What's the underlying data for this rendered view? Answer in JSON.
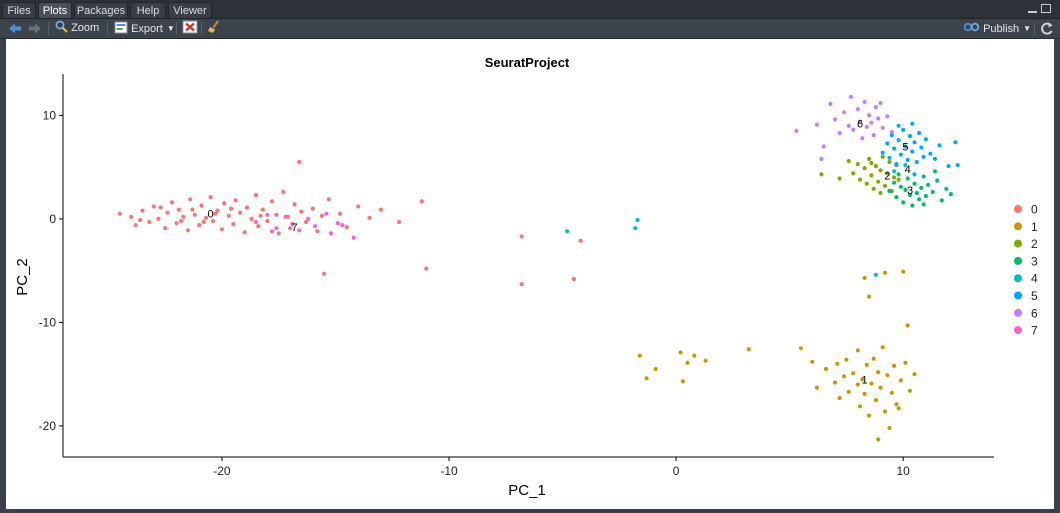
{
  "tabs": [
    {
      "label": "Files",
      "active": false
    },
    {
      "label": "Plots",
      "active": true
    },
    {
      "label": "Packages",
      "active": false
    },
    {
      "label": "Help",
      "active": false
    },
    {
      "label": "Viewer",
      "active": false
    }
  ],
  "toolbar": {
    "zoom_label": "Zoom",
    "export_label": "Export",
    "publish_label": "Publish"
  },
  "colors": {
    "0": "#F8766D",
    "1": "#CD9600",
    "2": "#7CAE00",
    "3": "#00BE67",
    "4": "#00BFC4",
    "5": "#00A9FF",
    "6": "#C77CFF",
    "7": "#FF61CC"
  },
  "chart_data": {
    "type": "scatter",
    "title": "SeuratProject",
    "xlabel": "PC_1",
    "ylabel": "PC_2",
    "xlim": [
      -27,
      14
    ],
    "ylim": [
      -23,
      14
    ],
    "x_ticks": [
      -20,
      -10,
      0,
      10
    ],
    "y_ticks": [
      -20,
      -10,
      0,
      10
    ],
    "grid": false,
    "legend_position": "right",
    "legend_entries": [
      "0",
      "1",
      "2",
      "3",
      "4",
      "5",
      "6",
      "7"
    ],
    "cluster_labels": [
      {
        "label": "0",
        "x": -20.5,
        "y": 0.5
      },
      {
        "label": "7",
        "x": -16.8,
        "y": -0.8
      },
      {
        "label": "1",
        "x": 8.3,
        "y": -15.5
      },
      {
        "label": "2",
        "x": 9.3,
        "y": 4.2
      },
      {
        "label": "3",
        "x": 10.3,
        "y": 2.8
      },
      {
        "label": "4",
        "x": 10.2,
        "y": 4.8
      },
      {
        "label": "5",
        "x": 10.1,
        "y": 7.0
      },
      {
        "label": "6",
        "x": 8.1,
        "y": 9.2
      }
    ],
    "series": [
      {
        "name": "0",
        "points": [
          [
            -24.5,
            0.5
          ],
          [
            -24.0,
            0.2
          ],
          [
            -23.8,
            -0.6
          ],
          [
            -23.5,
            0.8
          ],
          [
            -23.2,
            -0.3
          ],
          [
            -23.0,
            1.2
          ],
          [
            -22.8,
            0.0
          ],
          [
            -22.5,
            -0.9
          ],
          [
            -22.4,
            0.6
          ],
          [
            -22.2,
            1.6
          ],
          [
            -22.0,
            -0.4
          ],
          [
            -21.9,
            0.9
          ],
          [
            -21.7,
            0.2
          ],
          [
            -21.5,
            -1.1
          ],
          [
            -21.4,
            1.9
          ],
          [
            -21.2,
            0.4
          ],
          [
            -21.0,
            -0.6
          ],
          [
            -20.9,
            1.3
          ],
          [
            -20.7,
            0.1
          ],
          [
            -20.5,
            2.1
          ],
          [
            -20.4,
            -0.2
          ],
          [
            -20.2,
            0.8
          ],
          [
            -20.0,
            -1.0
          ],
          [
            -19.9,
            1.5
          ],
          [
            -19.7,
            0.3
          ],
          [
            -19.5,
            -0.5
          ],
          [
            -19.4,
            1.8
          ],
          [
            -19.2,
            0.6
          ],
          [
            -19.0,
            -1.3
          ],
          [
            -18.9,
            1.1
          ],
          [
            -18.7,
            0.0
          ],
          [
            -18.5,
            2.3
          ],
          [
            -18.4,
            -0.7
          ],
          [
            -18.2,
            0.9
          ],
          [
            -18.0,
            -0.2
          ],
          [
            -17.8,
            1.7
          ],
          [
            -17.6,
            0.4
          ],
          [
            -17.5,
            -1.4
          ],
          [
            -17.3,
            2.6
          ],
          [
            -17.1,
            0.2
          ],
          [
            -17.0,
            -0.9
          ],
          [
            -16.8,
            1.4
          ],
          [
            -16.6,
            5.5
          ],
          [
            -16.5,
            0.7
          ],
          [
            -16.3,
            -0.3
          ],
          [
            -16.0,
            1.0
          ],
          [
            -15.8,
            -1.2
          ],
          [
            -15.6,
            0.3
          ],
          [
            -15.5,
            -5.3
          ],
          [
            -15.3,
            1.9
          ],
          [
            -14.8,
            0.5
          ],
          [
            -14.5,
            -0.8
          ],
          [
            -14.0,
            1.2
          ],
          [
            -13.5,
            0.1
          ],
          [
            -13.0,
            0.9
          ],
          [
            -12.2,
            -0.3
          ],
          [
            -11.2,
            1.7
          ],
          [
            -11.0,
            -4.8
          ],
          [
            -6.8,
            -1.7
          ],
          [
            -6.8,
            -6.3
          ],
          [
            -4.5,
            -5.8
          ],
          [
            -4.2,
            -2.1
          ],
          [
            -21.3,
            0.9
          ],
          [
            -20.8,
            -0.3
          ],
          [
            -22.7,
            1.1
          ],
          [
            -19.6,
            1.0
          ],
          [
            -18.3,
            0.3
          ],
          [
            -21.8,
            -0.2
          ],
          [
            -20.3,
            0.5
          ],
          [
            -23.6,
            -0.1
          ]
        ]
      },
      {
        "name": "1",
        "points": [
          [
            -1.6,
            -13.2
          ],
          [
            -1.3,
            -15.4
          ],
          [
            -0.9,
            -14.5
          ],
          [
            0.2,
            -12.9
          ],
          [
            0.3,
            -15.7
          ],
          [
            0.5,
            -13.9
          ],
          [
            0.8,
            -13.2
          ],
          [
            1.3,
            -13.7
          ],
          [
            3.2,
            -12.6
          ],
          [
            5.5,
            -12.5
          ],
          [
            6.0,
            -13.8
          ],
          [
            6.2,
            -16.3
          ],
          [
            6.6,
            -14.5
          ],
          [
            7.0,
            -15.8
          ],
          [
            7.2,
            -17.3
          ],
          [
            7.5,
            -13.6
          ],
          [
            7.6,
            -16.7
          ],
          [
            7.8,
            -14.9
          ],
          [
            8.0,
            -12.7
          ],
          [
            8.1,
            -18.1
          ],
          [
            8.2,
            -15.5
          ],
          [
            8.3,
            -16.9
          ],
          [
            8.4,
            -14.1
          ],
          [
            8.5,
            -19.0
          ],
          [
            8.6,
            -15.9
          ],
          [
            8.7,
            -13.5
          ],
          [
            8.8,
            -17.5
          ],
          [
            8.9,
            -14.8
          ],
          [
            9.0,
            -16.3
          ],
          [
            9.1,
            -12.4
          ],
          [
            9.2,
            -18.6
          ],
          [
            9.3,
            -15.1
          ],
          [
            9.4,
            -20.2
          ],
          [
            9.5,
            -16.8
          ],
          [
            9.6,
            -14.2
          ],
          [
            9.7,
            -17.9
          ],
          [
            9.9,
            -15.6
          ],
          [
            10.1,
            -13.9
          ],
          [
            10.3,
            -16.6
          ],
          [
            10.5,
            -15.0
          ],
          [
            8.3,
            -5.7
          ],
          [
            8.5,
            -7.5
          ],
          [
            9.2,
            -5.2
          ],
          [
            10.0,
            -5.1
          ],
          [
            10.2,
            -10.3
          ],
          [
            8.9,
            -21.3
          ],
          [
            7.4,
            -15.2
          ],
          [
            8.0,
            -16.0
          ],
          [
            9.8,
            -18.3
          ],
          [
            7.1,
            -14.0
          ]
        ]
      },
      {
        "name": "2",
        "points": [
          [
            7.8,
            4.4
          ],
          [
            8.0,
            5.3
          ],
          [
            8.1,
            3.8
          ],
          [
            8.3,
            4.9
          ],
          [
            8.4,
            3.4
          ],
          [
            8.5,
            5.8
          ],
          [
            8.6,
            4.2
          ],
          [
            8.7,
            2.9
          ],
          [
            8.8,
            5.1
          ],
          [
            8.9,
            3.6
          ],
          [
            9.0,
            4.7
          ],
          [
            9.1,
            6.0
          ],
          [
            9.2,
            3.2
          ],
          [
            9.3,
            4.4
          ],
          [
            9.4,
            5.5
          ],
          [
            9.5,
            2.7
          ],
          [
            9.6,
            4.0
          ],
          [
            9.7,
            5.2
          ],
          [
            6.4,
            4.3
          ],
          [
            7.2,
            3.9
          ],
          [
            8.6,
            5.4
          ],
          [
            9.0,
            2.5
          ],
          [
            9.8,
            3.8
          ],
          [
            7.6,
            5.6
          ]
        ]
      },
      {
        "name": "3",
        "points": [
          [
            9.4,
            2.7
          ],
          [
            9.6,
            3.5
          ],
          [
            9.7,
            2.1
          ],
          [
            9.9,
            3.1
          ],
          [
            10.0,
            1.6
          ],
          [
            10.1,
            2.8
          ],
          [
            10.2,
            3.9
          ],
          [
            10.3,
            2.3
          ],
          [
            10.4,
            1.3
          ],
          [
            10.5,
            3.4
          ],
          [
            10.6,
            2.5
          ],
          [
            10.7,
            1.9
          ],
          [
            10.8,
            3.0
          ],
          [
            10.9,
            4.1
          ],
          [
            11.0,
            2.2
          ],
          [
            11.1,
            3.3
          ],
          [
            11.3,
            2.6
          ],
          [
            11.5,
            3.7
          ],
          [
            11.7,
            1.8
          ],
          [
            11.9,
            2.9
          ],
          [
            12.1,
            2.4
          ],
          [
            10.9,
            1.4
          ],
          [
            9.8,
            4.3
          ],
          [
            11.4,
            4.6
          ]
        ]
      },
      {
        "name": "4",
        "points": [
          [
            -4.8,
            -1.2
          ],
          [
            -1.8,
            -0.9
          ],
          [
            -1.7,
            -0.1
          ],
          [
            8.8,
            -5.4
          ],
          [
            9.6,
            4.6
          ],
          [
            10.1,
            5.2
          ],
          [
            10.5,
            4.3
          ]
        ]
      },
      {
        "name": "5",
        "points": [
          [
            9.1,
            6.4
          ],
          [
            9.3,
            7.3
          ],
          [
            9.4,
            5.9
          ],
          [
            9.5,
            8.1
          ],
          [
            9.6,
            6.8
          ],
          [
            9.7,
            5.3
          ],
          [
            9.8,
            7.6
          ],
          [
            9.9,
            6.2
          ],
          [
            10.0,
            8.6
          ],
          [
            10.1,
            7.0
          ],
          [
            10.2,
            5.7
          ],
          [
            10.3,
            8.0
          ],
          [
            10.4,
            6.5
          ],
          [
            10.5,
            7.4
          ],
          [
            10.6,
            5.5
          ],
          [
            10.7,
            8.3
          ],
          [
            10.8,
            6.9
          ],
          [
            10.9,
            6.0
          ],
          [
            11.0,
            7.7
          ],
          [
            11.2,
            6.3
          ],
          [
            11.4,
            5.8
          ],
          [
            11.6,
            7.1
          ],
          [
            12.0,
            5.1
          ],
          [
            12.3,
            7.4
          ],
          [
            12.4,
            5.2
          ],
          [
            9.8,
            9.0
          ],
          [
            10.4,
            9.2
          ]
        ]
      },
      {
        "name": "6",
        "points": [
          [
            5.3,
            8.5
          ],
          [
            6.2,
            9.1
          ],
          [
            6.5,
            7.0
          ],
          [
            6.8,
            11.1
          ],
          [
            7.0,
            9.6
          ],
          [
            7.2,
            8.3
          ],
          [
            7.4,
            10.3
          ],
          [
            7.6,
            9.0
          ],
          [
            7.7,
            11.8
          ],
          [
            7.8,
            8.6
          ],
          [
            8.0,
            10.6
          ],
          [
            8.1,
            9.4
          ],
          [
            8.2,
            7.8
          ],
          [
            8.3,
            11.3
          ],
          [
            8.4,
            8.9
          ],
          [
            8.5,
            10.0
          ],
          [
            8.6,
            9.3
          ],
          [
            8.7,
            8.1
          ],
          [
            8.8,
            10.8
          ],
          [
            8.9,
            9.7
          ],
          [
            9.0,
            11.2
          ],
          [
            9.1,
            8.8
          ],
          [
            9.3,
            9.9
          ],
          [
            9.5,
            8.4
          ],
          [
            6.4,
            5.8
          ]
        ]
      },
      {
        "name": "7",
        "points": [
          [
            -18.5,
            -0.3
          ],
          [
            -18.0,
            0.4
          ],
          [
            -17.6,
            -0.9
          ],
          [
            -17.2,
            0.2
          ],
          [
            -16.9,
            -0.5
          ],
          [
            -16.6,
            -1.1
          ],
          [
            -16.2,
            0.0
          ],
          [
            -15.9,
            -0.7
          ],
          [
            -15.4,
            0.5
          ],
          [
            -14.9,
            -0.4
          ],
          [
            -14.2,
            -1.8
          ],
          [
            -14.7,
            -0.6
          ],
          [
            -15.2,
            -1.4
          ],
          [
            -17.8,
            -1.2
          ]
        ]
      }
    ]
  }
}
